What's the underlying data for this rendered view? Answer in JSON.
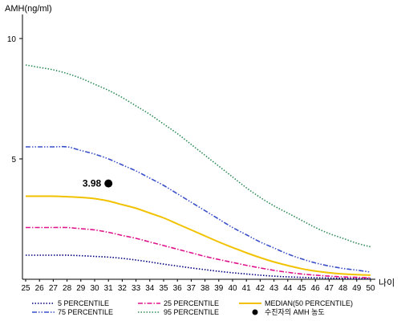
{
  "chart_data": {
    "type": "line",
    "ylabel": "AMH(ng/ml)",
    "xlabel": "나이",
    "x": [
      25,
      26,
      27,
      28,
      29,
      30,
      31,
      32,
      33,
      34,
      35,
      36,
      37,
      38,
      39,
      40,
      41,
      42,
      43,
      44,
      45,
      46,
      47,
      48,
      49,
      50
    ],
    "xlim": [
      25,
      50
    ],
    "ylim": [
      0,
      11
    ],
    "yticks": [
      5,
      10
    ],
    "grid": false,
    "legend_position": "bottom",
    "series": [
      {
        "name": "5 PERCENTILE",
        "color": "#000080",
        "dash": "dotted",
        "values": [
          1.0,
          1.0,
          1.0,
          1.0,
          0.98,
          0.95,
          0.92,
          0.87,
          0.8,
          0.72,
          0.63,
          0.55,
          0.47,
          0.4,
          0.33,
          0.27,
          0.22,
          0.17,
          0.13,
          0.1,
          0.08,
          0.06,
          0.05,
          0.04,
          0.03,
          0.03
        ]
      },
      {
        "name": "75 PERCENTILE",
        "color": "#3a50c8",
        "dash": "dashdotdot",
        "values": [
          5.5,
          5.5,
          5.5,
          5.5,
          5.35,
          5.2,
          5.0,
          4.75,
          4.5,
          4.2,
          3.9,
          3.55,
          3.2,
          2.85,
          2.5,
          2.15,
          1.85,
          1.55,
          1.3,
          1.05,
          0.85,
          0.68,
          0.55,
          0.45,
          0.38,
          0.3
        ]
      },
      {
        "name": "25 PERCENTILE",
        "color": "#e0138c",
        "dash": "dashdot",
        "values": [
          2.15,
          2.15,
          2.15,
          2.15,
          2.1,
          2.05,
          1.95,
          1.82,
          1.7,
          1.55,
          1.4,
          1.25,
          1.1,
          0.95,
          0.82,
          0.7,
          0.58,
          0.47,
          0.37,
          0.29,
          0.22,
          0.17,
          0.13,
          0.1,
          0.08,
          0.06
        ]
      },
      {
        "name": "95 PERCENTILE",
        "color": "#2e8b57",
        "dash": "dotted",
        "values": [
          8.9,
          8.8,
          8.7,
          8.55,
          8.35,
          8.1,
          7.85,
          7.55,
          7.2,
          6.85,
          6.45,
          6.05,
          5.6,
          5.15,
          4.7,
          4.25,
          3.8,
          3.4,
          3.05,
          2.75,
          2.45,
          2.15,
          1.9,
          1.7,
          1.5,
          1.35
        ]
      },
      {
        "name": "MEDIAN(50 PERCENTILE)",
        "color": "#f2c200",
        "dash": "solid",
        "values": [
          3.45,
          3.45,
          3.45,
          3.43,
          3.4,
          3.35,
          3.25,
          3.1,
          2.95,
          2.75,
          2.55,
          2.3,
          2.05,
          1.8,
          1.55,
          1.32,
          1.1,
          0.9,
          0.72,
          0.57,
          0.44,
          0.34,
          0.27,
          0.22,
          0.19,
          0.17
        ]
      }
    ],
    "points": [
      {
        "name": "수진자의 AMH 농도",
        "x": 31,
        "y": 3.98,
        "label": "3.98",
        "color": "#000000"
      }
    ]
  }
}
